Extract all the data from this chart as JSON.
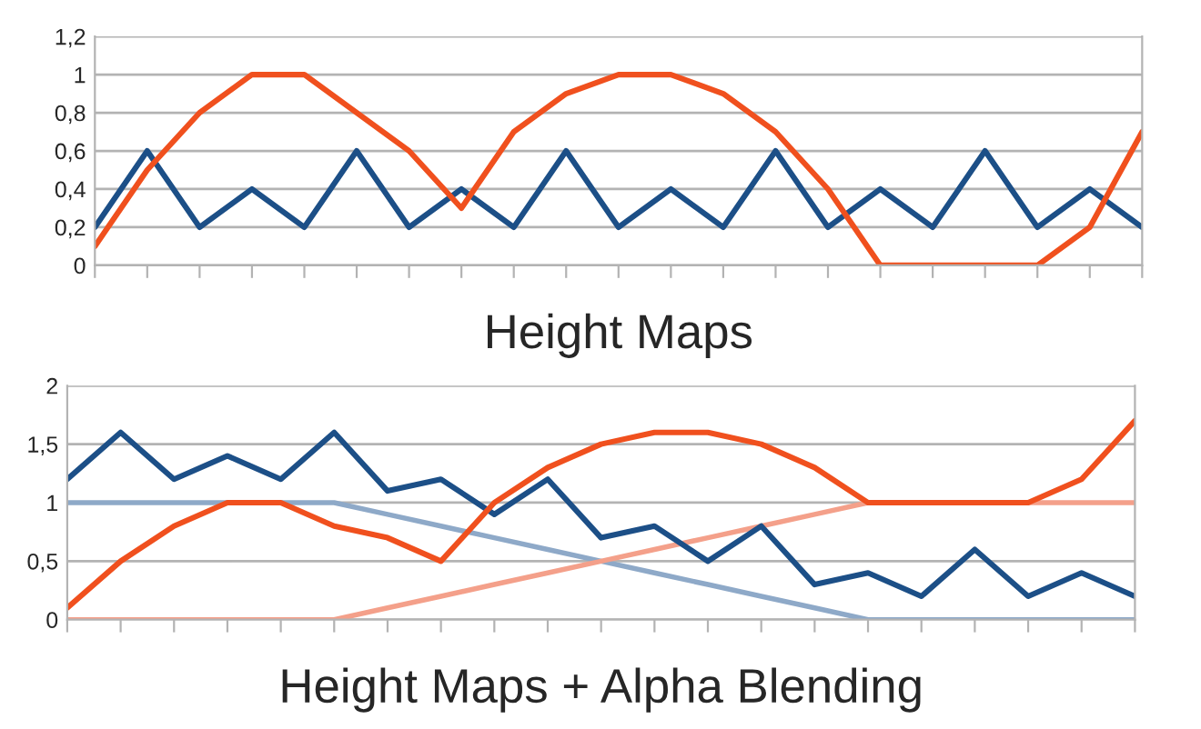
{
  "chart_data": [
    {
      "type": "line",
      "xlabel": "Height Maps",
      "categories": [
        null,
        null,
        null,
        null,
        null,
        null,
        null,
        null,
        null,
        null,
        null,
        null,
        null,
        null,
        null,
        null,
        null,
        null,
        null,
        null,
        null
      ],
      "series": [
        {
          "color": "#1c4f87",
          "values": [
            0.2,
            0.6,
            0.2,
            0.4,
            0.2,
            0.6,
            0.2,
            0.4,
            0.2,
            0.6,
            0.2,
            0.4,
            0.2,
            0.6,
            0.2,
            0.4,
            0.2,
            0.6,
            0.2,
            0.4,
            0.2
          ]
        },
        {
          "color": "#f0501e",
          "values": [
            0.1,
            0.5,
            0.8,
            1,
            1,
            0.8,
            0.6,
            0.3,
            0.7,
            0.9,
            1,
            1,
            0.9,
            0.7,
            0.4,
            0,
            0,
            0,
            0,
            0.2,
            0.7
          ]
        }
      ],
      "ylim": [
        0,
        1.2
      ],
      "yticks": [
        {
          "value": 0,
          "label": "0"
        },
        {
          "value": 0.2,
          "label": "0,2"
        },
        {
          "value": 0.4,
          "label": "0,4"
        },
        {
          "value": 0.6,
          "label": "0,6"
        },
        {
          "value": 0.8,
          "label": "0,8"
        },
        {
          "value": 1,
          "label": "1"
        },
        {
          "value": 1.2,
          "label": "1,2"
        }
      ],
      "grid": "y",
      "tick_labels": "y",
      "legend": false,
      "marker": "none",
      "line_style": "solid"
    },
    {
      "type": "line",
      "xlabel": "Height Maps + Alpha Blending",
      "categories": [
        null,
        null,
        null,
        null,
        null,
        null,
        null,
        null,
        null,
        null,
        null,
        null,
        null,
        null,
        null,
        null,
        null,
        null,
        null,
        null,
        null
      ],
      "series": [
        {
          "color": "#8ea9c8",
          "values": [
            1,
            1,
            1,
            1,
            1,
            1,
            0.9,
            0.8,
            0.7,
            0.6,
            0.5,
            0.4,
            0.3,
            0.2,
            0.1,
            0,
            0,
            0,
            0,
            0,
            0
          ]
        },
        {
          "color": "#f4a08a",
          "values": [
            0,
            0,
            0,
            0,
            0,
            0,
            0.1,
            0.2,
            0.3,
            0.4,
            0.5,
            0.6,
            0.7,
            0.8,
            0.9,
            1,
            null,
            null,
            1,
            1,
            1
          ]
        },
        {
          "color": "#1c4f87",
          "values": [
            1.2,
            1.6,
            1.2,
            1.4,
            1.2,
            1.6,
            1.1,
            1.2,
            0.9,
            1.2,
            0.7,
            0.8,
            0.5,
            0.8,
            0.3,
            0.4,
            0.2,
            0.6,
            0.2,
            0.4,
            0.2
          ]
        },
        {
          "color": "#f0501e",
          "values": [
            0.1,
            0.5,
            0.8,
            1,
            1,
            0.8,
            0.7,
            0.5,
            1,
            1.3,
            1.5,
            1.6,
            1.6,
            1.5,
            1.3,
            1,
            1,
            1,
            1,
            1.2,
            1.7
          ]
        }
      ],
      "ylim": [
        0,
        2
      ],
      "yticks": [
        {
          "value": 0,
          "label": "0"
        },
        {
          "value": 0.5,
          "label": "0,5"
        },
        {
          "value": 1,
          "label": "1"
        },
        {
          "value": 1.5,
          "label": "1,5"
        },
        {
          "value": 2,
          "label": "2"
        }
      ],
      "grid": "y",
      "tick_labels": "y",
      "legend": false,
      "marker": "none",
      "line_style": "solid"
    }
  ]
}
